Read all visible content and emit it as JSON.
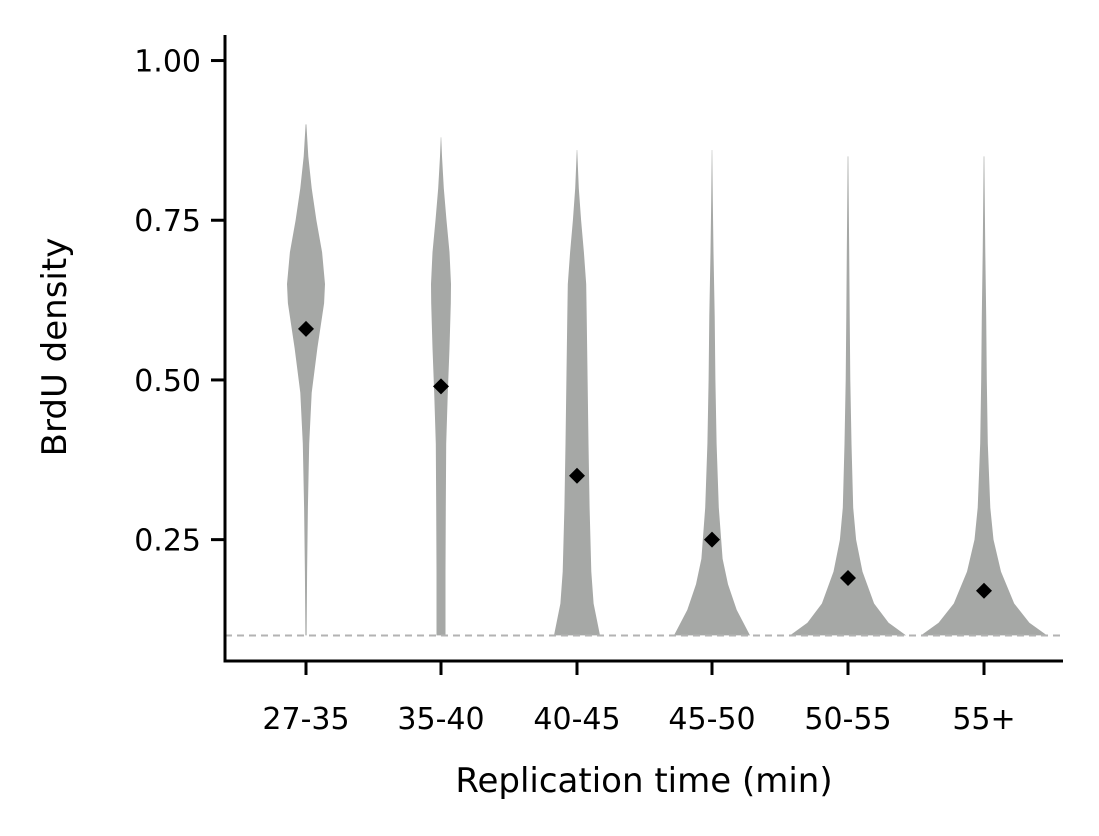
{
  "chart_data": {
    "type": "violin",
    "xlabel": "Replication time (min)",
    "ylabel": "BrdU density",
    "ylim": [
      0.06,
      1.04
    ],
    "yticks": [
      0.25,
      0.5,
      0.75,
      1.0
    ],
    "ytick_labels": [
      "0.25",
      "0.50",
      "0.75",
      "1.00"
    ],
    "reference_line": {
      "y": 0.1,
      "style": "dashed",
      "color": "#b3b3b3"
    },
    "violin_color": "#a6a8a6",
    "marker_color": "#000000",
    "categories": [
      "27-35",
      "35-40",
      "40-45",
      "45-50",
      "50-55",
      "55+"
    ],
    "means": [
      0.58,
      0.49,
      0.35,
      0.25,
      0.19,
      0.17
    ],
    "violins": [
      {
        "category": "27-35",
        "min": 0.1,
        "max": 0.9,
        "profile": [
          [
            0.1,
            0.03
          ],
          [
            0.2,
            0.06
          ],
          [
            0.3,
            0.1
          ],
          [
            0.4,
            0.17
          ],
          [
            0.48,
            0.3
          ],
          [
            0.55,
            0.6
          ],
          [
            0.62,
            0.95
          ],
          [
            0.65,
            1.0
          ],
          [
            0.7,
            0.85
          ],
          [
            0.75,
            0.55
          ],
          [
            0.8,
            0.3
          ],
          [
            0.85,
            0.12
          ],
          [
            0.9,
            0.02
          ]
        ]
      },
      {
        "category": "35-40",
        "min": 0.1,
        "max": 0.88,
        "profile": [
          [
            0.1,
            0.45
          ],
          [
            0.2,
            0.45
          ],
          [
            0.3,
            0.48
          ],
          [
            0.4,
            0.52
          ],
          [
            0.48,
            0.68
          ],
          [
            0.55,
            0.85
          ],
          [
            0.62,
            0.98
          ],
          [
            0.65,
            1.0
          ],
          [
            0.7,
            0.85
          ],
          [
            0.75,
            0.55
          ],
          [
            0.8,
            0.28
          ],
          [
            0.85,
            0.1
          ],
          [
            0.88,
            0.02
          ]
        ]
      },
      {
        "category": "40-45",
        "min": 0.1,
        "max": 0.86,
        "profile": [
          [
            0.1,
            1.0
          ],
          [
            0.15,
            0.72
          ],
          [
            0.2,
            0.62
          ],
          [
            0.3,
            0.55
          ],
          [
            0.4,
            0.5
          ],
          [
            0.5,
            0.46
          ],
          [
            0.6,
            0.42
          ],
          [
            0.65,
            0.4
          ],
          [
            0.7,
            0.3
          ],
          [
            0.75,
            0.18
          ],
          [
            0.8,
            0.08
          ],
          [
            0.86,
            0.01
          ]
        ]
      },
      {
        "category": "45-50",
        "min": 0.1,
        "max": 0.86,
        "profile": [
          [
            0.1,
            1.0
          ],
          [
            0.14,
            0.65
          ],
          [
            0.18,
            0.42
          ],
          [
            0.22,
            0.28
          ],
          [
            0.3,
            0.18
          ],
          [
            0.4,
            0.12
          ],
          [
            0.5,
            0.09
          ],
          [
            0.6,
            0.07
          ],
          [
            0.7,
            0.04
          ],
          [
            0.78,
            0.02
          ],
          [
            0.86,
            0.005
          ]
        ]
      },
      {
        "category": "50-55",
        "min": 0.1,
        "max": 0.85,
        "profile": [
          [
            0.1,
            1.0
          ],
          [
            0.12,
            0.7
          ],
          [
            0.15,
            0.45
          ],
          [
            0.2,
            0.25
          ],
          [
            0.25,
            0.14
          ],
          [
            0.3,
            0.09
          ],
          [
            0.4,
            0.06
          ],
          [
            0.5,
            0.04
          ],
          [
            0.6,
            0.03
          ],
          [
            0.7,
            0.02
          ],
          [
            0.85,
            0.005
          ]
        ]
      },
      {
        "category": "55+",
        "min": 0.1,
        "max": 0.85,
        "profile": [
          [
            0.1,
            1.0
          ],
          [
            0.12,
            0.72
          ],
          [
            0.15,
            0.48
          ],
          [
            0.2,
            0.27
          ],
          [
            0.25,
            0.15
          ],
          [
            0.3,
            0.1
          ],
          [
            0.4,
            0.06
          ],
          [
            0.5,
            0.045
          ],
          [
            0.6,
            0.035
          ],
          [
            0.7,
            0.02
          ],
          [
            0.85,
            0.005
          ]
        ]
      }
    ],
    "legend": "none",
    "grid": false
  }
}
